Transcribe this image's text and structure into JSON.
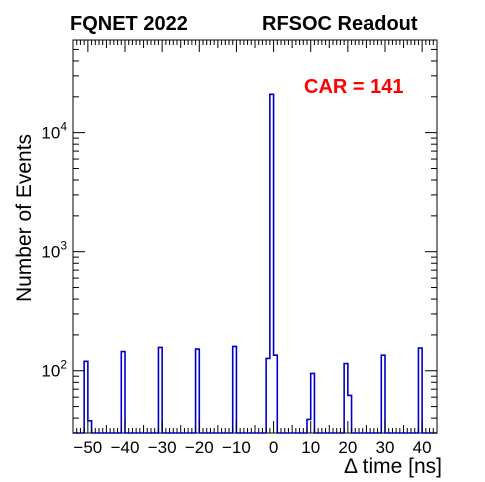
{
  "header": {
    "title_left": "FQNET 2022",
    "title_right": "RFSOC Readout"
  },
  "annotation": {
    "text": "CAR = 141",
    "color": "#ff0000"
  },
  "chart_data": {
    "type": "bar",
    "style": "step-histogram",
    "title": "",
    "xlabel": "Δ time [ns]",
    "ylabel": "Number of Events",
    "xlim": [
      -54,
      44
    ],
    "ylim": [
      30,
      60000
    ],
    "yscale": "log",
    "grid": false,
    "line_color": "#0000cc",
    "bin_width": 1,
    "bins": [
      {
        "x": -50.5,
        "value": 120
      },
      {
        "x": -49.5,
        "value": 38
      },
      {
        "x": -40.5,
        "value": 145
      },
      {
        "x": -30.5,
        "value": 157
      },
      {
        "x": -20.5,
        "value": 152
      },
      {
        "x": -10.5,
        "value": 160
      },
      {
        "x": -1.5,
        "value": 127
      },
      {
        "x": -0.5,
        "value": 21000
      },
      {
        "x": 0.5,
        "value": 135
      },
      {
        "x": 9.5,
        "value": 39
      },
      {
        "x": 10.5,
        "value": 95
      },
      {
        "x": 19.5,
        "value": 115
      },
      {
        "x": 20.5,
        "value": 62
      },
      {
        "x": 29.5,
        "value": 135
      },
      {
        "x": 39.5,
        "value": 155
      }
    ],
    "xticks": [
      -50,
      -40,
      -30,
      -20,
      -10,
      0,
      10,
      20,
      30,
      40
    ],
    "xtick_labels": [
      "−50",
      "−40",
      "−30",
      "−20",
      "−10",
      "0",
      "10",
      "20",
      "30",
      "40"
    ],
    "yticks": [
      {
        "value": 100,
        "base": "10",
        "exp": "2"
      },
      {
        "value": 1000,
        "base": "10",
        "exp": "3"
      },
      {
        "value": 10000,
        "base": "10",
        "exp": "4"
      }
    ]
  }
}
